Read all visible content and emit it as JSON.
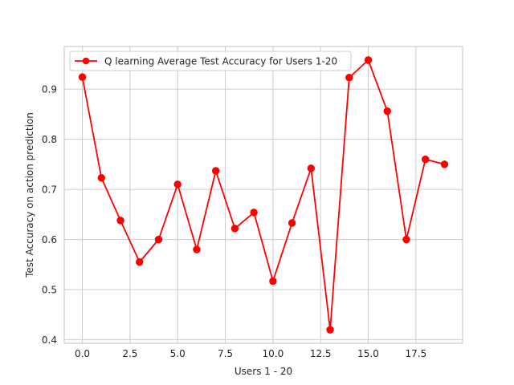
{
  "chart_data": {
    "type": "line",
    "xlabel": "Users 1 - 20",
    "ylabel": "Test Accuracy on action prediction",
    "xlim": [
      -0.95,
      19.95
    ],
    "ylim": [
      0.393,
      0.985
    ],
    "xticks": [
      0.0,
      2.5,
      5.0,
      7.5,
      10.0,
      12.5,
      15.0,
      17.5
    ],
    "xtick_labels": [
      "0.0",
      "2.5",
      "5.0",
      "7.5",
      "10.0",
      "12.5",
      "15.0",
      "17.5"
    ],
    "yticks": [
      0.4,
      0.5,
      0.6,
      0.7,
      0.8,
      0.9
    ],
    "ytick_labels": [
      "0.4",
      "0.5",
      "0.6",
      "0.7",
      "0.8",
      "0.9"
    ],
    "grid": true,
    "legend_position": "top-left",
    "series": [
      {
        "name": "Q learning Average Test Accuracy for Users 1-20",
        "color": "#ff0000",
        "marker": "circle",
        "x": [
          0,
          1,
          2,
          3,
          4,
          5,
          6,
          7,
          8,
          9,
          10,
          11,
          12,
          13,
          14,
          15,
          16,
          17,
          18,
          19
        ],
        "values": [
          0.924,
          0.723,
          0.638,
          0.555,
          0.6,
          0.71,
          0.58,
          0.737,
          0.622,
          0.654,
          0.517,
          0.633,
          0.742,
          0.42,
          0.923,
          0.958,
          0.856,
          0.6,
          0.76,
          0.75
        ]
      }
    ]
  }
}
